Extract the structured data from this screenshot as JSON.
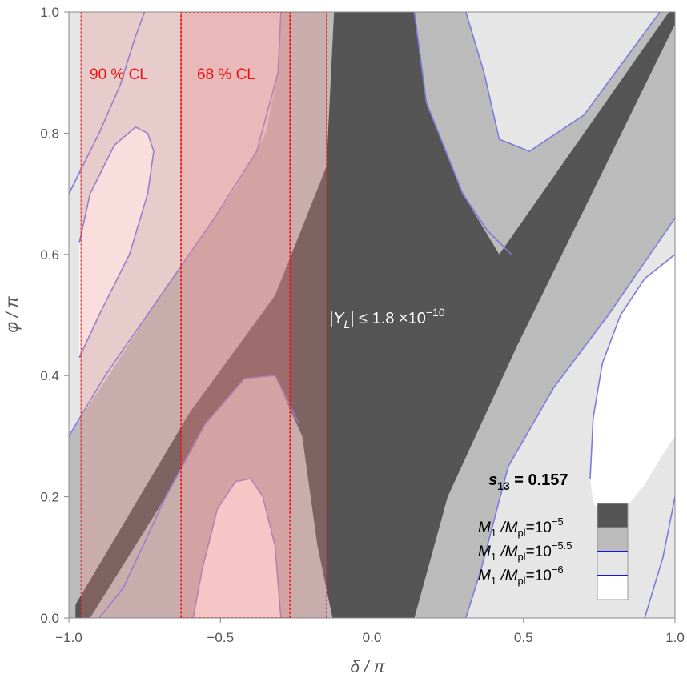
{
  "chart_data": {
    "type": "contour",
    "xlabel": "δ / π",
    "ylabel": "φ / π",
    "xlim": [
      -1.0,
      1.0
    ],
    "ylim": [
      0.0,
      1.0
    ],
    "x_ticks": [
      "−1.0",
      "−0.5",
      "0.0",
      "0.5",
      "1.0"
    ],
    "x_tick_values": [
      -1.0,
      -0.5,
      0.0,
      0.5,
      1.0
    ],
    "y_ticks": [
      "0.0",
      "0.2",
      "0.4",
      "0.6",
      "0.8",
      "1.0"
    ],
    "y_tick_values": [
      0.0,
      0.2,
      0.4,
      0.6,
      0.8,
      1.0
    ],
    "annotation_main": "|Y",
    "annotation_main_sub": "L",
    "annotation_main_rest": "| ≤ 1.8 ×10",
    "annotation_main_exp": "−10",
    "s13_label": "s",
    "s13_sub": "13",
    "s13_value": " = 0.157",
    "colors": {
      "level_1e-5": "#555555",
      "level_1e-5.5": "#bbbbbb",
      "level_1e-6": "#e6e6e6",
      "contour_line": "#7b7bdd",
      "cl_shading": "#ee8888",
      "cl_border": "#ee1111"
    },
    "regions": [
      {
        "name": "dark-band",
        "level": "10^-5",
        "polygon": [
          [
            -0.978,
            0.0
          ],
          [
            -0.978,
            0.022
          ],
          [
            -0.6,
            0.34
          ],
          [
            -0.32,
            0.532
          ],
          [
            -0.15,
            0.745
          ],
          [
            -0.125,
            1.0
          ],
          [
            0.14,
            1.0
          ],
          [
            0.18,
            0.85
          ],
          [
            0.3,
            0.7
          ],
          [
            0.42,
            0.6
          ],
          [
            0.98,
            1.0
          ],
          [
            1.0,
            1.0
          ],
          [
            1.0,
            0.98
          ],
          [
            0.48,
            0.45
          ],
          [
            0.25,
            0.2
          ],
          [
            0.14,
            0.0
          ],
          [
            -0.13,
            0.0
          ],
          [
            -0.18,
            0.12
          ],
          [
            -0.23,
            0.3
          ],
          [
            -0.32,
            0.4
          ],
          [
            -0.42,
            0.395
          ],
          [
            -0.55,
            0.32
          ],
          [
            -0.68,
            0.2
          ],
          [
            -0.93,
            0.0
          ]
        ]
      },
      {
        "name": "left-bubble",
        "level": "10^-6",
        "polygon": [
          [
            -0.965,
            0.62
          ],
          [
            -0.93,
            0.7
          ],
          [
            -0.85,
            0.78
          ],
          [
            -0.78,
            0.81
          ],
          [
            -0.74,
            0.8
          ],
          [
            -0.72,
            0.77
          ],
          [
            -0.74,
            0.7
          ],
          [
            -0.8,
            0.6
          ],
          [
            -0.9,
            0.5
          ],
          [
            -0.965,
            0.43
          ]
        ]
      },
      {
        "name": "bottom-bubble",
        "level": "10^-6",
        "polygon": [
          [
            -0.59,
            0.0
          ],
          [
            -0.56,
            0.08
          ],
          [
            -0.51,
            0.18
          ],
          [
            -0.45,
            0.225
          ],
          [
            -0.4,
            0.23
          ],
          [
            -0.36,
            0.2
          ],
          [
            -0.32,
            0.12
          ],
          [
            -0.3,
            0.0
          ]
        ]
      },
      {
        "name": "right-bubble",
        "level": "10^-6",
        "polygon": [
          [
            0.72,
            0.23
          ],
          [
            0.73,
            0.33
          ],
          [
            0.76,
            0.42
          ],
          [
            0.82,
            0.5
          ],
          [
            0.9,
            0.56
          ],
          [
            1.0,
            0.6
          ],
          [
            1.0,
            0.3
          ],
          [
            0.96,
            0.27
          ],
          [
            0.9,
            0.22
          ],
          [
            0.82,
            0.17
          ],
          [
            0.76,
            0.17
          ],
          [
            0.73,
            0.19
          ]
        ]
      }
    ],
    "contour_lines": [
      [
        [
          -1.0,
          0.7
        ],
        [
          -0.9,
          0.8
        ],
        [
          -0.83,
          0.88
        ],
        [
          -0.78,
          0.96
        ],
        [
          -0.75,
          1.0
        ]
      ],
      [
        [
          -0.965,
          0.43
        ],
        [
          -0.9,
          0.5
        ],
        [
          -0.8,
          0.6
        ],
        [
          -0.74,
          0.7
        ],
        [
          -0.72,
          0.77
        ],
        [
          -0.74,
          0.8
        ],
        [
          -0.78,
          0.81
        ],
        [
          -0.85,
          0.78
        ],
        [
          -0.93,
          0.7
        ],
        [
          -0.965,
          0.62
        ]
      ],
      [
        [
          -1.0,
          0.3
        ],
        [
          -0.88,
          0.4
        ],
        [
          -0.7,
          0.53
        ],
        [
          -0.52,
          0.66
        ],
        [
          -0.38,
          0.77
        ],
        [
          -0.31,
          0.9
        ],
        [
          -0.3,
          1.0
        ]
      ],
      [
        [
          -0.9,
          0.0
        ],
        [
          -0.82,
          0.05
        ],
        [
          -0.68,
          0.2
        ],
        [
          -0.55,
          0.32
        ],
        [
          -0.42,
          0.395
        ],
        [
          -0.32,
          0.4
        ],
        [
          -0.24,
          0.32
        ]
      ],
      [
        [
          -0.59,
          0.0
        ],
        [
          -0.56,
          0.08
        ],
        [
          -0.51,
          0.18
        ],
        [
          -0.45,
          0.225
        ],
        [
          -0.4,
          0.23
        ],
        [
          -0.36,
          0.2
        ],
        [
          -0.32,
          0.12
        ],
        [
          -0.3,
          0.0
        ]
      ],
      [
        [
          0.14,
          1.0
        ],
        [
          0.18,
          0.85
        ],
        [
          0.3,
          0.7
        ],
        [
          0.38,
          0.64
        ],
        [
          0.46,
          0.6
        ]
      ],
      [
        [
          0.31,
          1.0
        ],
        [
          0.37,
          0.9
        ],
        [
          0.42,
          0.79
        ],
        [
          0.52,
          0.77
        ],
        [
          0.7,
          0.83
        ],
        [
          0.95,
          1.0
        ]
      ],
      [
        [
          0.31,
          0.0
        ],
        [
          0.36,
          0.08
        ],
        [
          0.45,
          0.25
        ],
        [
          0.6,
          0.38
        ],
        [
          0.78,
          0.5
        ],
        [
          1.0,
          0.66
        ]
      ],
      [
        [
          0.72,
          0.23
        ],
        [
          0.73,
          0.33
        ],
        [
          0.76,
          0.42
        ],
        [
          0.82,
          0.5
        ],
        [
          0.9,
          0.56
        ],
        [
          1.0,
          0.6
        ]
      ],
      [
        [
          0.9,
          0.0
        ],
        [
          0.96,
          0.1
        ],
        [
          1.0,
          0.2
        ]
      ]
    ],
    "cl_regions": [
      {
        "label": "90 % CL",
        "x_range": [
          -0.96,
          -0.15
        ],
        "y_range": [
          0.0,
          1.0
        ]
      },
      {
        "label": "68 % CL",
        "x_range": [
          -0.63,
          -0.27
        ],
        "y_range": [
          0.0,
          1.0
        ]
      }
    ],
    "legend": {
      "position": "bottom-right",
      "items": [
        {
          "label_prefix": "M",
          "label_sub1": "1",
          "label_mid": " /M",
          "label_sub2": "pl",
          "label_eq": "=10",
          "label_exp": "−5",
          "color": "#555555",
          "line": false
        },
        {
          "label_prefix": "M",
          "label_sub1": "1",
          "label_mid": " /M",
          "label_sub2": "pl",
          "label_eq": "=10",
          "label_exp": "−5.5",
          "color": "#bbbbbb",
          "line": true
        },
        {
          "label_prefix": "M",
          "label_sub1": "1",
          "label_mid": " /M",
          "label_sub2": "pl",
          "label_eq": "=10",
          "label_exp": "−6",
          "color": "#e6e6e6",
          "line": true
        },
        {
          "color": "#ffffff",
          "line": false
        }
      ]
    }
  }
}
